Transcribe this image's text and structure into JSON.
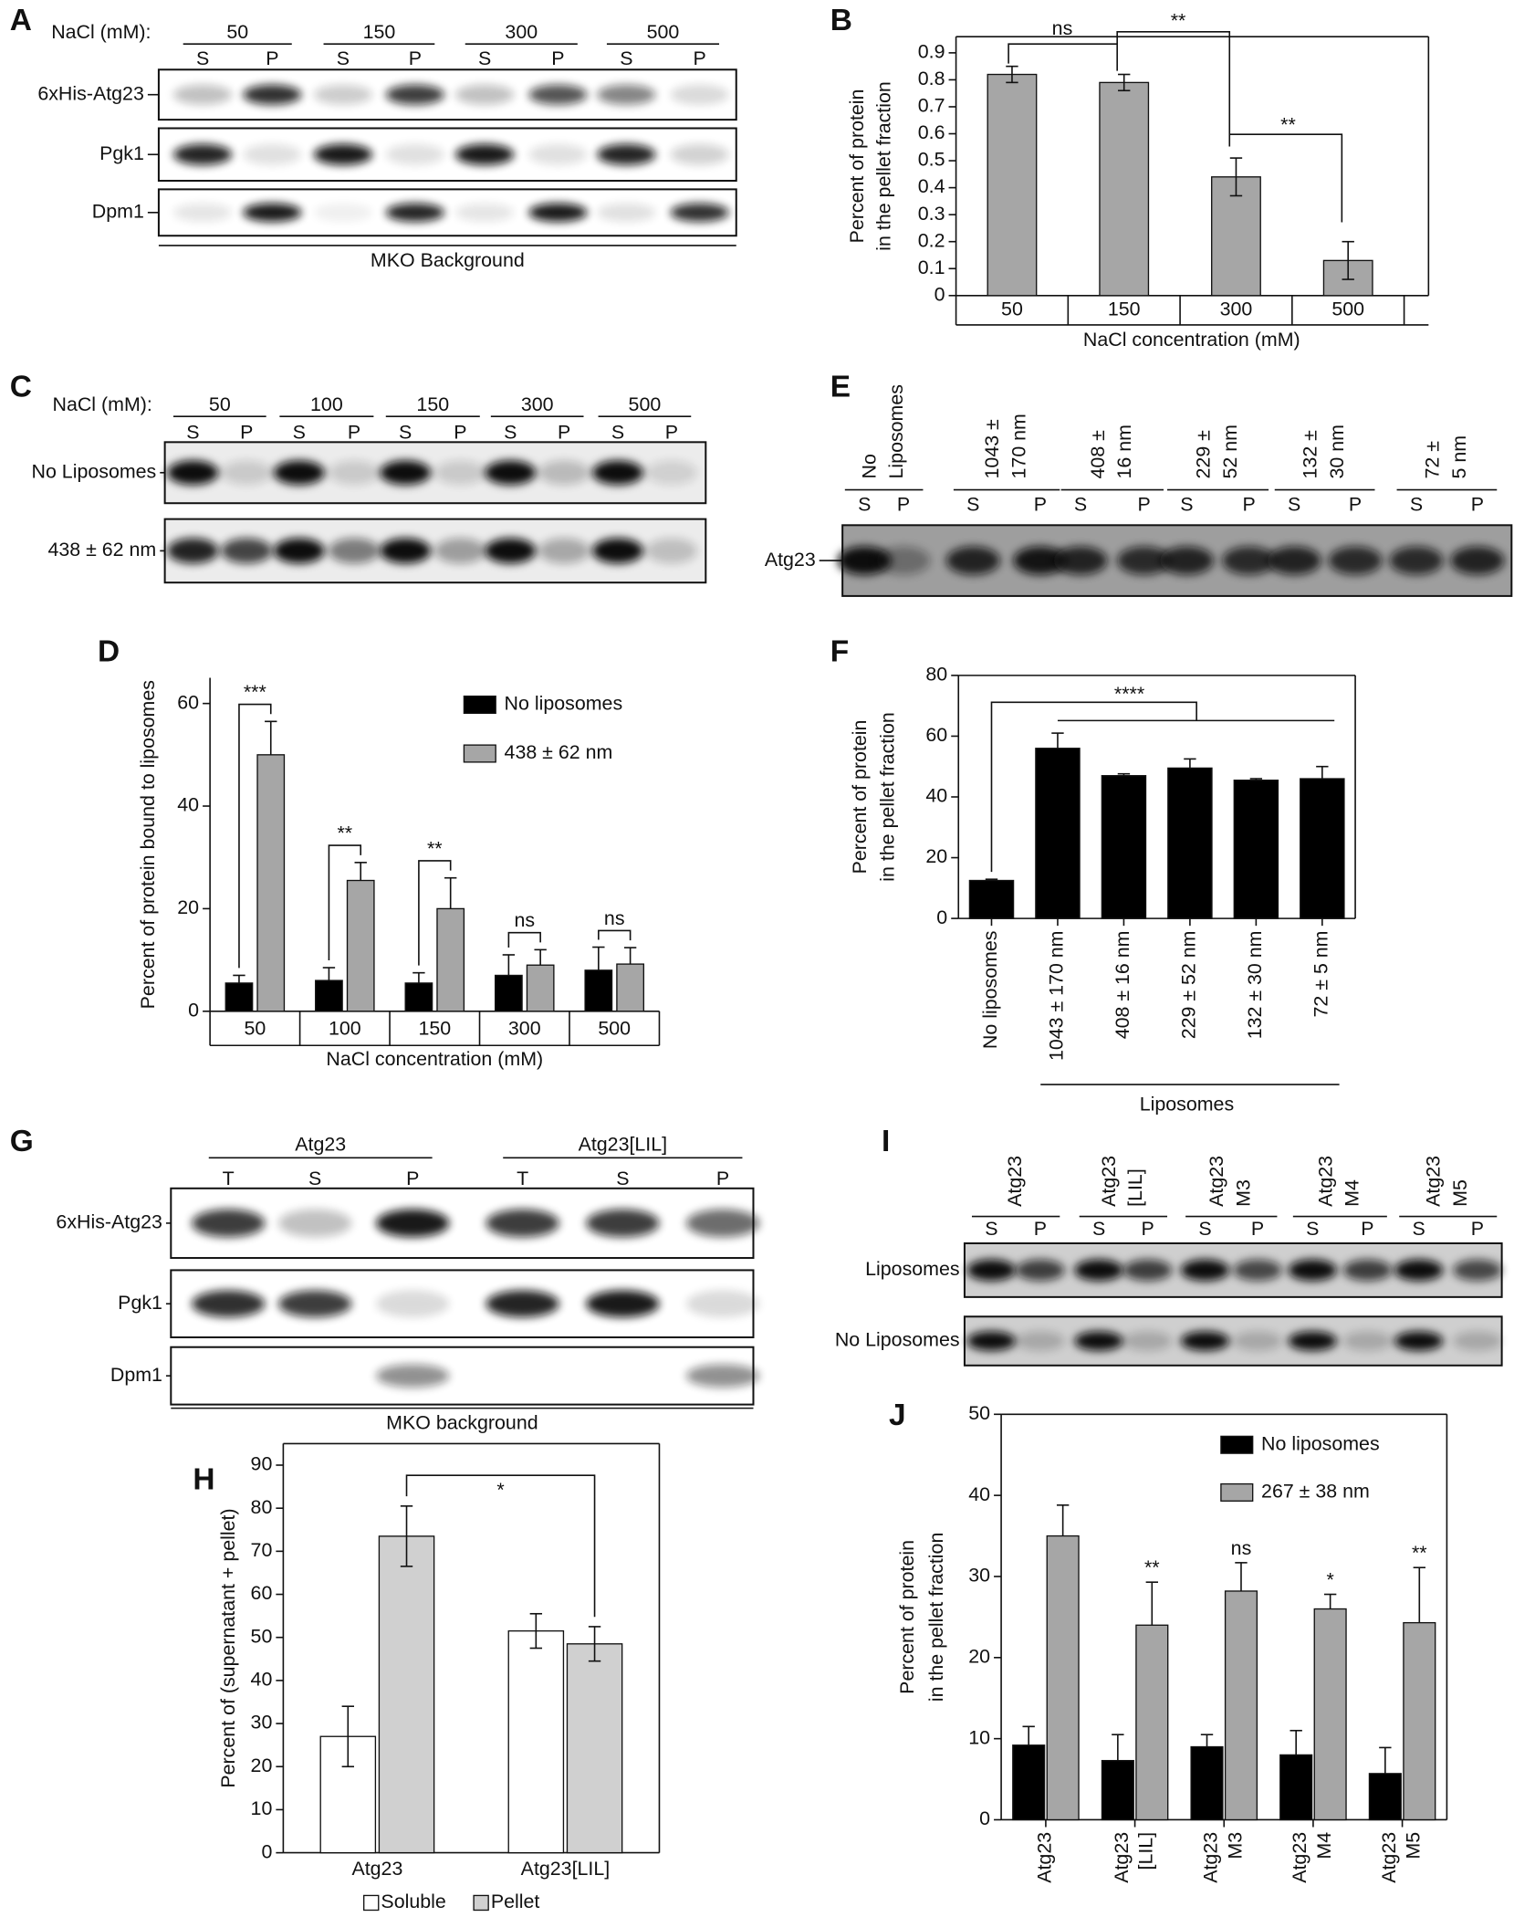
{
  "blots": [
    {
      "panel_label": "A",
      "header": "NaCl (mM):",
      "groups": [
        "50",
        "150",
        "300",
        "500"
      ],
      "lanes": [
        "S",
        "P"
      ],
      "rows": [
        "6xHis-Atg23",
        "Pgk1",
        "Dpm1"
      ],
      "footer": "MKO Background"
    },
    {
      "panel_label": "C",
      "header": "NaCl (mM):",
      "groups": [
        "50",
        "100",
        "150",
        "300",
        "500"
      ],
      "lanes": [
        "S",
        "P"
      ],
      "rows": [
        "No Liposomes",
        "438 ± 62 nm"
      ]
    },
    {
      "panel_label": "E",
      "groups": [
        [
          "No",
          "Liposomes"
        ],
        [
          "1043 ±",
          "170 nm"
        ],
        [
          "408 ±",
          "16 nm"
        ],
        [
          "229 ±",
          "52 nm"
        ],
        [
          "132 ±",
          "30 nm"
        ],
        [
          "72 ±",
          "5 nm"
        ]
      ],
      "lanes": [
        "S",
        "P"
      ],
      "rows": [
        "Atg23"
      ]
    },
    {
      "panel_label": "G",
      "groups": [
        "Atg23",
        "Atg23[LIL]"
      ],
      "lanes": [
        "T",
        "S",
        "P"
      ],
      "rows": [
        "6xHis-Atg23",
        "Pgk1",
        "Dpm1"
      ],
      "footer": "MKO background"
    },
    {
      "panel_label": "I",
      "groups": [
        [
          "Atg23"
        ],
        [
          "Atg23",
          "[LIL]"
        ],
        [
          "Atg23",
          "M3"
        ],
        [
          "Atg23",
          "M4"
        ],
        [
          "Atg23",
          "M5"
        ]
      ],
      "lanes": [
        "S",
        "P"
      ],
      "rows": [
        "Liposomes",
        "No Liposomes"
      ]
    }
  ],
  "chart_data": [
    {
      "type": "bar",
      "panel_label": "B",
      "categories": [
        "50",
        "150",
        "300",
        "500"
      ],
      "values": [
        0.82,
        0.79,
        0.44,
        0.13
      ],
      "errors": [
        0.03,
        0.03,
        0.07,
        0.07
      ],
      "color": "#a6a6a6",
      "ylim": [
        0,
        0.96
      ],
      "yticks": [
        0,
        0.1,
        0.2,
        0.3,
        0.4,
        0.5,
        0.6,
        0.7,
        0.8,
        0.9
      ],
      "ylabel": [
        "Percent of protein",
        "in the pellet fraction"
      ],
      "xlabel": "NaCl concentration (mM)",
      "annotations": [
        "ns",
        "**",
        "**"
      ]
    },
    {
      "type": "bar",
      "panel_label": "D",
      "categories": [
        "50",
        "100",
        "150",
        "300",
        "500"
      ],
      "series": [
        {
          "name": "No liposomes",
          "color": "#000000",
          "values": [
            5.5,
            6,
            5.5,
            7,
            8
          ],
          "errors": [
            1.5,
            2.5,
            2,
            4,
            4.5
          ]
        },
        {
          "name": "438 ± 62 nm",
          "color": "#a6a6a6",
          "values": [
            50,
            25.5,
            20,
            9,
            9.2
          ],
          "errors": [
            6.5,
            3.5,
            6,
            3,
            3.2
          ]
        }
      ],
      "ylim": [
        0,
        65
      ],
      "yticks": [
        0,
        20,
        40,
        60
      ],
      "ylabel": [
        "Percent of protein bound to liposomes"
      ],
      "xlabel": "NaCl concentration (mM)",
      "annotations": [
        "***",
        "**",
        "**",
        "ns",
        "ns"
      ]
    },
    {
      "type": "bar",
      "panel_label": "F",
      "categories": [
        "No liposomes",
        "1043 ± 170 nm",
        "408 ± 16 nm",
        "229 ± 52 nm",
        "132 ± 30 nm",
        "72 ± 5 nm"
      ],
      "values": [
        12.5,
        56,
        47,
        49.5,
        45.5,
        46
      ],
      "errors": [
        0.4,
        5,
        0.6,
        3,
        0.5,
        4
      ],
      "color": "#000000",
      "ylim": [
        0,
        80
      ],
      "yticks": [
        0,
        20,
        40,
        60,
        80
      ],
      "ylabel": [
        "Percent of protein",
        "in the pellet fraction"
      ],
      "group_label": "Liposomes",
      "annotations": [
        "****"
      ]
    },
    {
      "type": "bar",
      "panel_label": "H",
      "categories": [
        "Atg23",
        "Atg23[LIL]"
      ],
      "series": [
        {
          "name": "Soluble",
          "color": "#ffffff",
          "values": [
            27,
            51.5
          ],
          "errors": [
            7,
            4
          ]
        },
        {
          "name": "Pellet",
          "color": "#d0d0d0",
          "values": [
            73.5,
            48.5
          ],
          "errors": [
            7,
            4
          ]
        }
      ],
      "ylim": [
        0,
        95
      ],
      "yticks": [
        0,
        10,
        20,
        30,
        40,
        50,
        60,
        70,
        80,
        90
      ],
      "ylabel": [
        "Percent of (supernatant + pellet)"
      ],
      "annotations": [
        "*"
      ]
    },
    {
      "type": "bar",
      "panel_label": "J",
      "categories": [
        [
          "Atg23"
        ],
        [
          "Atg23",
          "[LIL]"
        ],
        [
          "Atg23",
          "M3"
        ],
        [
          "Atg23",
          "M4"
        ],
        [
          "Atg23",
          "M5"
        ]
      ],
      "series": [
        {
          "name": "No liposomes",
          "color": "#000000",
          "values": [
            9.2,
            7.3,
            9,
            8,
            5.7
          ],
          "errors": [
            2.3,
            3.2,
            1.5,
            3,
            3.2
          ]
        },
        {
          "name": "267 ± 38 nm",
          "color": "#a6a6a6",
          "values": [
            35,
            24,
            28.2,
            26,
            24.3
          ],
          "errors": [
            3.8,
            5.3,
            3.5,
            1.8,
            6.8
          ]
        }
      ],
      "ylim": [
        0,
        50
      ],
      "yticks": [
        0,
        10,
        20,
        30,
        40,
        50
      ],
      "ylabel": [
        "Percent of protein",
        "in the pellet fraction"
      ],
      "annotations": [
        "**",
        "ns",
        "*",
        "**"
      ]
    }
  ]
}
